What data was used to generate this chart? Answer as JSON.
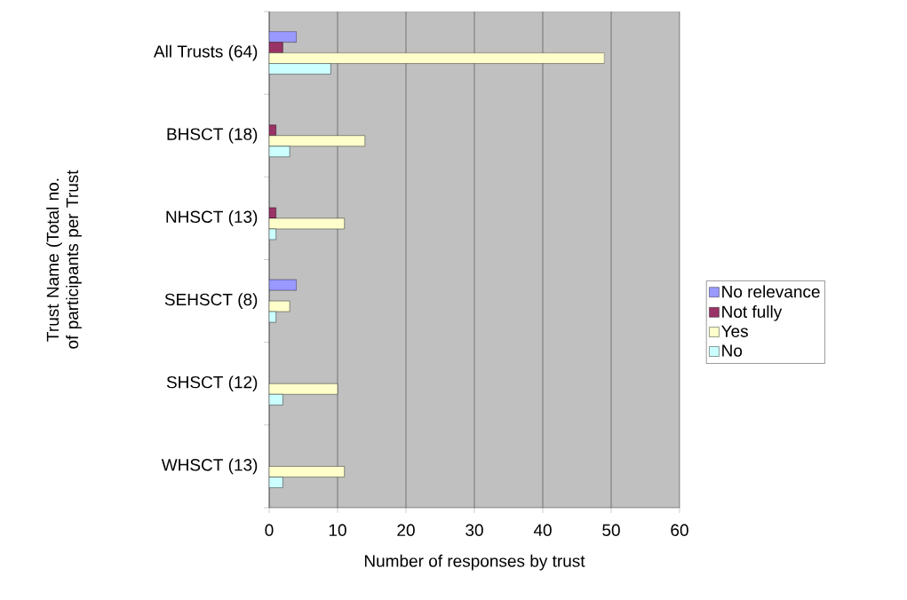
{
  "chart_data": {
    "type": "bar",
    "orientation": "horizontal",
    "xlabel": "Number of responses by trust",
    "ylabel": "Trust Name (Total no. of participants per Trust",
    "categories": [
      "All Trusts (64)",
      "BHSCT (18)",
      "NHSCT (13)",
      "SEHSCT (8)",
      "SHSCT (12)",
      "WHSCT (13)"
    ],
    "series": [
      {
        "name": "No relevance",
        "color": "#9999ff",
        "values": [
          4,
          0,
          0,
          4,
          0,
          0
        ]
      },
      {
        "name": "Not fully",
        "color": "#993366",
        "values": [
          2,
          1,
          1,
          0,
          0,
          0
        ]
      },
      {
        "name": "Yes",
        "color": "#ffffcc",
        "values": [
          49,
          14,
          11,
          3,
          10,
          11
        ]
      },
      {
        "name": "No",
        "color": "#ccffff",
        "values": [
          9,
          3,
          1,
          1,
          2,
          2
        ]
      }
    ],
    "xlim": [
      0,
      60
    ],
    "xticks": [
      0,
      10,
      20,
      30,
      40,
      50,
      60
    ],
    "grid": "x",
    "legend": "right"
  }
}
